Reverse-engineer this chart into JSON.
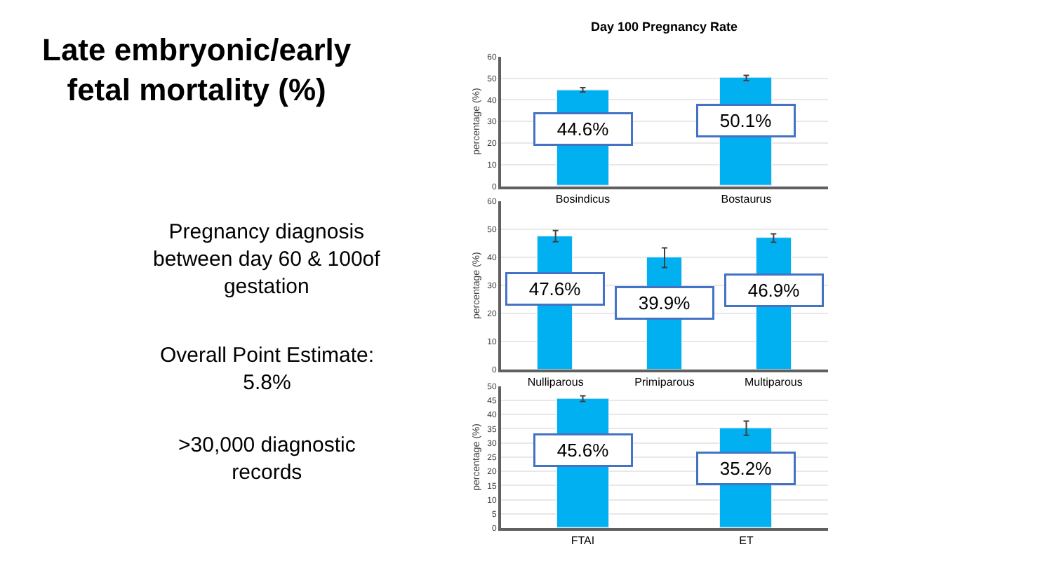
{
  "chart_data": [
    {
      "type": "other",
      "title": "Late embryonic/early fetal mortality (%)",
      "annotations": [
        "Pregnancy diagnosis between day 60 & 100of gestation",
        "Overall Point Estimate: 5.8%",
        ">30,000 diagnostic records"
      ]
    },
    {
      "type": "bar",
      "title": "Day 100 Pregnancy Rate",
      "ylabel": "percentage (%)",
      "categories": [
        "Bosindicus",
        "Bostaurus"
      ],
      "values": [
        44.6,
        50.1
      ],
      "errors": [
        1.0,
        1.2
      ],
      "value_labels": [
        "44.6%",
        "50.1%"
      ],
      "color": "#00b0f0",
      "ylim": [
        0,
        60
      ],
      "yticks": [
        0,
        10,
        20,
        30,
        40,
        50,
        60
      ],
      "grid": "y"
    },
    {
      "type": "bar",
      "ylabel": "percentage (%)",
      "categories": [
        "Nulliparous",
        "Primiparous",
        "Multiparous"
      ],
      "values": [
        47.6,
        39.9,
        46.9
      ],
      "errors": [
        2.0,
        3.5,
        1.5
      ],
      "value_labels": [
        "47.6%",
        "39.9%",
        "46.9%"
      ],
      "color": "#00b0f0",
      "ylim": [
        0,
        60
      ],
      "yticks": [
        0,
        10,
        20,
        30,
        40,
        50,
        60
      ],
      "grid": "y"
    },
    {
      "type": "bar",
      "ylabel": "percentage (%)",
      "categories": [
        "FTAI",
        "ET"
      ],
      "values": [
        45.6,
        35.2
      ],
      "errors": [
        1.0,
        2.5
      ],
      "value_labels": [
        "45.6%",
        "35.2%"
      ],
      "color": "#00b0f0",
      "ylim": [
        0,
        50
      ],
      "yticks": [
        0,
        5,
        10,
        15,
        20,
        25,
        30,
        35,
        40,
        45,
        50
      ],
      "grid": "y"
    }
  ]
}
